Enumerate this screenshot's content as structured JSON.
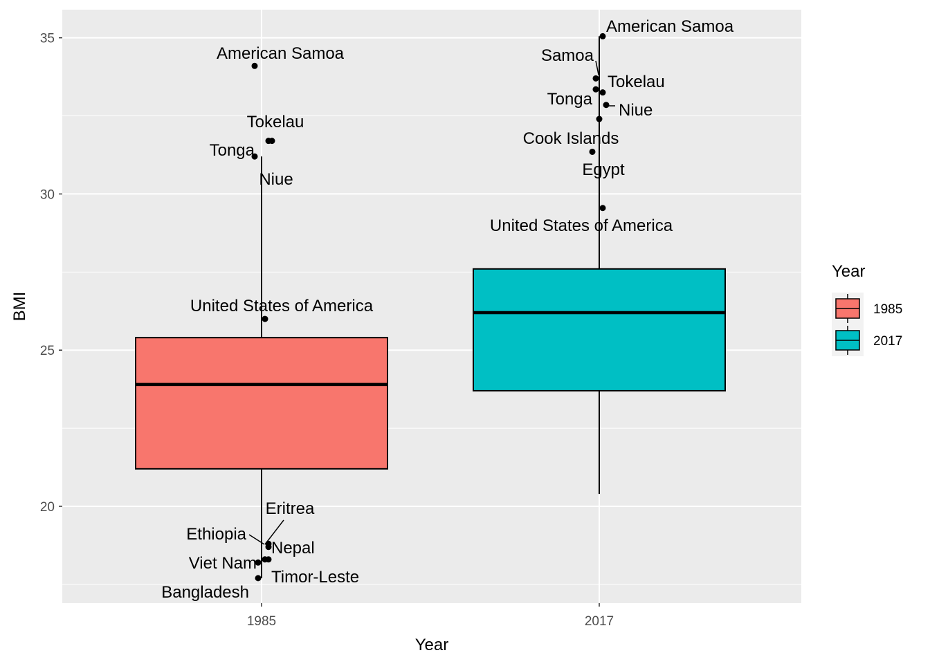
{
  "chart_data": {
    "type": "box",
    "xlabel": "Year",
    "ylabel": "BMI",
    "categories": [
      "1985",
      "2017"
    ],
    "ylim": [
      16.9,
      35.9
    ],
    "y_ticks": [
      20,
      25,
      30,
      35
    ],
    "grid": true,
    "legend": {
      "title": "Year",
      "position": "right",
      "items": [
        {
          "label": "1985",
          "color": "#F8766D"
        },
        {
          "label": "2017",
          "color": "#00BFC4"
        }
      ]
    },
    "boxes": [
      {
        "category": "1985",
        "whisker_low": 17.7,
        "q1": 21.2,
        "median": 23.9,
        "q3": 25.4,
        "whisker_high": 31.2,
        "fill": "#F8766D"
      },
      {
        "category": "2017",
        "whisker_low": 20.4,
        "q1": 23.7,
        "median": 26.2,
        "q3": 27.6,
        "whisker_high": 35.05,
        "fill": "#00BFC4"
      }
    ],
    "labeled_points": [
      {
        "category": "1985",
        "jitter": -0.02,
        "y": 34.1,
        "label": "American Samoa"
      },
      {
        "category": "1985",
        "jitter": 0.02,
        "y": 31.7,
        "label": "Tokelau"
      },
      {
        "category": "1985",
        "jitter": 0.03,
        "y": 31.7,
        "label": ""
      },
      {
        "category": "1985",
        "jitter": -0.02,
        "y": 31.2,
        "label": "Tonga"
      },
      {
        "category": "1985",
        "jitter": 0.01,
        "y": 26.0,
        "label": "United States of America"
      },
      {
        "category": "1985",
        "jitter": 0.02,
        "y": 18.8,
        "label": "Eritrea"
      },
      {
        "category": "1985",
        "jitter": 0.02,
        "y": 18.7,
        "label": "Ethiopia"
      },
      {
        "category": "1985",
        "jitter": 0.02,
        "y": 18.3,
        "label": "Nepal"
      },
      {
        "category": "1985",
        "jitter": -0.01,
        "y": 18.2,
        "label": "Viet Nam"
      },
      {
        "category": "1985",
        "jitter": 0.01,
        "y": 18.3,
        "label": ""
      },
      {
        "category": "1985",
        "jitter": -0.01,
        "y": 17.7,
        "label": "Timor-Leste"
      },
      {
        "category": "2017",
        "jitter": 0.01,
        "y": 35.05,
        "label": "American Samoa"
      },
      {
        "category": "2017",
        "jitter": -0.01,
        "y": 33.7,
        "label": "Samoa"
      },
      {
        "category": "2017",
        "jitter": 0.01,
        "y": 33.25,
        "label": "Tokelau"
      },
      {
        "category": "2017",
        "jitter": -0.01,
        "y": 33.35,
        "label": "Tonga"
      },
      {
        "category": "2017",
        "jitter": 0.02,
        "y": 32.85,
        "label": "Niue"
      },
      {
        "category": "2017",
        "jitter": 0.0,
        "y": 32.4,
        "label": ""
      },
      {
        "category": "2017",
        "jitter": -0.02,
        "y": 31.35,
        "label": "Cook Islands"
      },
      {
        "category": "2017",
        "jitter": 0.01,
        "y": 29.55,
        "label": "United States of America"
      }
    ],
    "free_labels": [
      {
        "category": "1985",
        "label": "Niue"
      },
      {
        "category": "1985",
        "label": "Bangladesh"
      },
      {
        "category": "2017",
        "label": "Egypt"
      }
    ]
  }
}
